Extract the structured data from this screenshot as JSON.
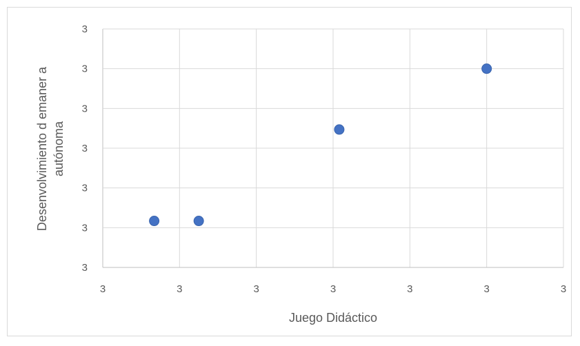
{
  "chart_data": {
    "type": "scatter",
    "title": "",
    "xlabel": "Juego Didáctico",
    "ylabel_lines": [
      "Desenvolvimiento d emaner a",
      "autónoma"
    ],
    "x_tick_labels": [
      "3",
      "3",
      "3",
      "3",
      "3",
      "3",
      "3"
    ],
    "y_tick_labels": [
      "3",
      "3",
      "3",
      "3",
      "3",
      "3",
      "3"
    ],
    "xlim": [
      0,
      6
    ],
    "ylim": [
      0,
      6
    ],
    "grid": true,
    "legend": "none",
    "marker_color": "#4472c4",
    "points": [
      {
        "x": 0.67,
        "y": 1.17
      },
      {
        "x": 1.25,
        "y": 1.17
      },
      {
        "x": 3.08,
        "y": 3.47
      },
      {
        "x": 5.0,
        "y": 5.0
      }
    ]
  }
}
